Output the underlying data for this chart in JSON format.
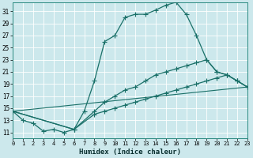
{
  "xlabel": "Humidex (Indice chaleur)",
  "bg_color": "#cce8ec",
  "grid_color": "#b8d8dc",
  "line_color": "#1a7068",
  "xlim": [
    0,
    23
  ],
  "ylim": [
    10,
    32.5
  ],
  "yticks": [
    11,
    13,
    15,
    17,
    19,
    21,
    23,
    25,
    27,
    29,
    31
  ],
  "xticks": [
    0,
    1,
    2,
    3,
    4,
    5,
    6,
    7,
    8,
    9,
    10,
    11,
    12,
    13,
    14,
    15,
    16,
    17,
    18,
    19,
    20,
    21,
    22,
    23
  ],
  "line1_x": [
    0,
    1,
    2,
    3,
    4,
    5,
    6,
    7,
    8,
    9,
    10,
    11,
    12,
    13,
    14,
    15,
    16,
    17,
    18,
    19,
    20,
    21,
    22,
    23
  ],
  "line1_y": [
    14.5,
    13.0,
    12.5,
    11.2,
    11.5,
    11.0,
    11.5,
    14.5,
    19.5,
    26.0,
    27.0,
    30.0,
    30.5,
    30.5,
    31.2,
    32.0,
    32.5,
    30.5,
    27.0,
    23.0,
    21.0,
    20.5,
    19.5,
    18.5
  ],
  "line2_x": [
    0,
    6,
    8,
    9,
    10,
    11,
    12,
    13,
    14,
    15,
    16,
    17,
    18,
    19,
    20,
    21,
    22,
    23
  ],
  "line2_y": [
    14.5,
    11.5,
    14.5,
    16.0,
    17.0,
    18.0,
    18.5,
    19.5,
    20.5,
    21.0,
    21.5,
    22.0,
    22.5,
    23.0,
    21.0,
    20.5,
    19.5,
    18.5
  ],
  "line3_x": [
    0,
    6,
    8,
    9,
    10,
    11,
    12,
    13,
    14,
    15,
    16,
    17,
    18,
    19,
    20,
    21,
    22,
    23
  ],
  "line3_y": [
    14.5,
    11.5,
    14.0,
    14.5,
    15.0,
    15.5,
    16.0,
    16.5,
    17.0,
    17.5,
    18.0,
    18.5,
    19.0,
    19.5,
    20.0,
    20.5,
    19.5,
    18.5
  ],
  "line4_x": [
    0,
    23
  ],
  "line4_y": [
    14.5,
    18.5
  ]
}
